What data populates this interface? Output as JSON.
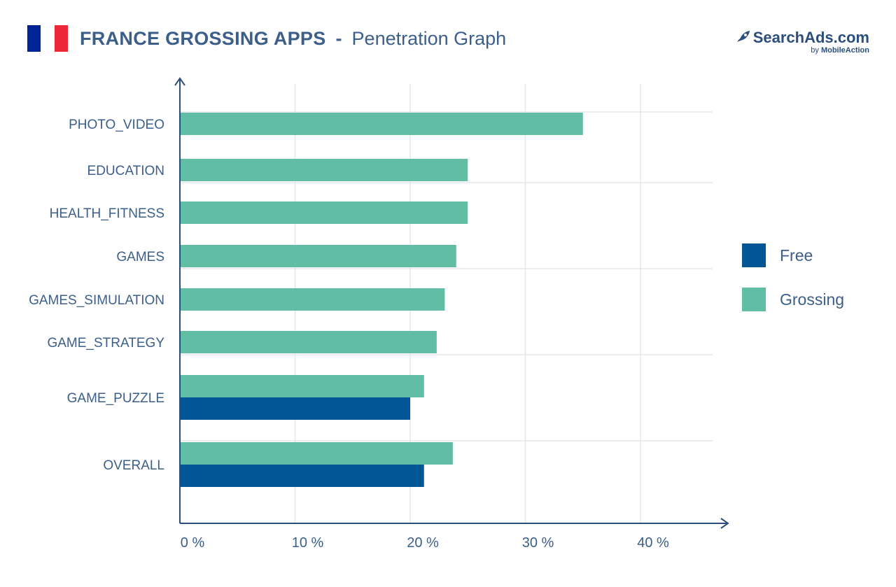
{
  "header": {
    "title_main": "FRANCE GROSSING APPS",
    "title_sep": "-",
    "title_sub": "Penetration Graph",
    "flag_colors": [
      "#002395",
      "#FFFFFF",
      "#ED2939"
    ]
  },
  "logo": {
    "brand": "SearchAds.com",
    "by_prefix": "by",
    "by_name": "MobileAction"
  },
  "colors": {
    "text": "#3b5f8a",
    "free": "#035696",
    "grossing": "#61bda3",
    "axis": "#2b4e7c",
    "grid": "#e4e8ec"
  },
  "chart_data": {
    "type": "bar",
    "orientation": "horizontal",
    "categories": [
      "PHOTO_VIDEO",
      "EDUCATION",
      "HEALTH_FITNESS",
      "GAMES",
      "GAMES_SIMULATION",
      "GAME_STRATEGY",
      "GAME_PUZZLE",
      "OVERALL"
    ],
    "series": [
      {
        "name": "Free",
        "color": "#035696",
        "values": [
          null,
          null,
          null,
          null,
          null,
          null,
          20,
          21.2
        ]
      },
      {
        "name": "Grossing",
        "color": "#61bda3",
        "values": [
          35,
          25,
          25,
          24,
          23,
          22.3,
          21.2,
          23.7
        ]
      }
    ],
    "xticks": [
      "0 %",
      "10 %",
      "20 %",
      "30 %",
      "40 %"
    ],
    "xlim": [
      0,
      40
    ],
    "grid": true,
    "legend": "right"
  }
}
